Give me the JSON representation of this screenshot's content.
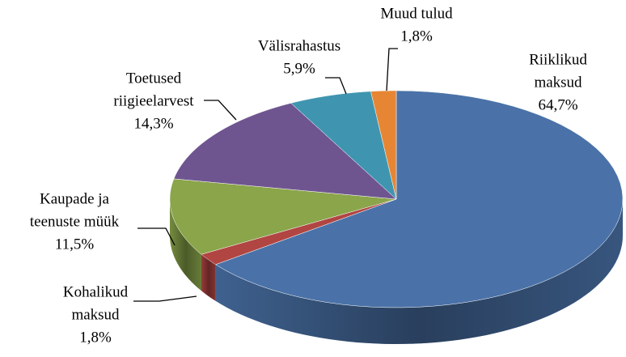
{
  "chart_data": {
    "type": "pie",
    "categories": [
      [
        "Riiklikud",
        "maksud"
      ],
      [
        "Kohalikud",
        "maksud"
      ],
      [
        "Kaupade ja",
        "teenuste müük"
      ],
      [
        "Toetused",
        "riigieelarvest"
      ],
      [
        "Välisrahastus"
      ],
      [
        "Muud tulud"
      ]
    ],
    "values": [
      64.7,
      1.8,
      11.5,
      14.3,
      5.9,
      1.8
    ],
    "value_labels": [
      "64,7%",
      "1,8%",
      "11,5%",
      "14,3%",
      "5,9%",
      "1,8%"
    ],
    "colors": [
      "#4a72a8",
      "#b14542",
      "#8aa54a",
      "#6f5590",
      "#3f95b0",
      "#e68634"
    ]
  }
}
